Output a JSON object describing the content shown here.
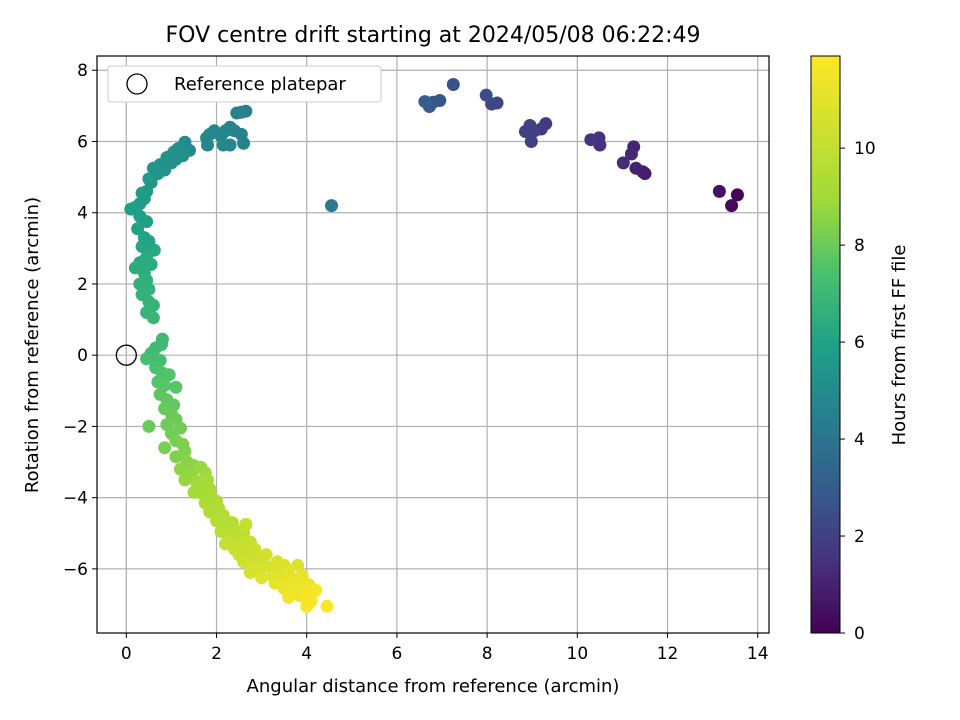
{
  "chart_data": {
    "type": "scatter",
    "title": "FOV centre drift starting at 2024/05/08 06:22:49",
    "xlabel": "Angular distance from reference (arcmin)",
    "ylabel": "Rotation from reference (arcmin)",
    "xlim": [
      -0.65,
      14.25
    ],
    "ylim": [
      -7.8,
      8.4
    ],
    "xticks": [
      0,
      2,
      4,
      6,
      8,
      10,
      12,
      14
    ],
    "yticks": [
      -6,
      -4,
      -2,
      0,
      2,
      4,
      6,
      8
    ],
    "grid": true,
    "legend": {
      "position": "top-left",
      "entries": [
        "Reference platepar"
      ]
    },
    "reference_point": {
      "x": 0,
      "y": 0,
      "marker": "open-circle"
    },
    "colorbar": {
      "label": "Hours from first FF file",
      "colormap": "viridis",
      "range": [
        0,
        11.9
      ],
      "ticks": [
        0,
        2,
        4,
        6,
        8,
        10
      ]
    },
    "points": [
      [
        13.55,
        4.5,
        0.1
      ],
      [
        13.42,
        4.2,
        0.3
      ],
      [
        13.15,
        4.6,
        0.5
      ],
      [
        11.5,
        5.1,
        0.8
      ],
      [
        11.45,
        5.15,
        0.9
      ],
      [
        11.3,
        5.25,
        1.0
      ],
      [
        11.25,
        5.85,
        1.1
      ],
      [
        11.2,
        5.65,
        1.2
      ],
      [
        11.02,
        5.4,
        1.3
      ],
      [
        10.5,
        5.9,
        1.4
      ],
      [
        10.48,
        6.1,
        1.5
      ],
      [
        10.3,
        6.05,
        1.6
      ],
      [
        9.3,
        6.5,
        1.7
      ],
      [
        9.2,
        6.35,
        1.8
      ],
      [
        9.05,
        6.3,
        1.9
      ],
      [
        8.98,
        6.0,
        2.0
      ],
      [
        8.95,
        6.45,
        2.0
      ],
      [
        8.85,
        6.28,
        2.1
      ],
      [
        8.22,
        7.08,
        2.2
      ],
      [
        8.1,
        7.05,
        2.3
      ],
      [
        7.98,
        7.3,
        2.4
      ],
      [
        7.25,
        7.6,
        2.6
      ],
      [
        6.95,
        7.15,
        2.7
      ],
      [
        6.8,
        7.1,
        2.8
      ],
      [
        6.72,
        6.98,
        2.9
      ],
      [
        6.62,
        7.12,
        3.0
      ],
      [
        4.55,
        4.2,
        4.2
      ],
      [
        2.65,
        6.85,
        4.4
      ],
      [
        2.55,
        6.82,
        4.5
      ],
      [
        2.45,
        6.8,
        4.55
      ],
      [
        2.6,
        5.95,
        4.6
      ],
      [
        2.55,
        6.2,
        4.6
      ],
      [
        2.4,
        6.3,
        4.65
      ],
      [
        2.3,
        6.4,
        4.7
      ],
      [
        2.2,
        6.3,
        4.7
      ],
      [
        2.3,
        5.9,
        4.75
      ],
      [
        2.15,
        5.9,
        4.75
      ],
      [
        2.1,
        6.15,
        4.8
      ],
      [
        1.95,
        6.3,
        4.8
      ],
      [
        1.85,
        6.2,
        4.85
      ],
      [
        1.8,
        5.9,
        4.85
      ],
      [
        1.78,
        6.1,
        4.9
      ],
      [
        1.4,
        5.75,
        5.0
      ],
      [
        1.3,
        5.98,
        5.05
      ],
      [
        1.25,
        5.6,
        5.1
      ],
      [
        1.15,
        5.8,
        5.1
      ],
      [
        1.1,
        5.5,
        5.15
      ],
      [
        1.05,
        5.7,
        5.2
      ],
      [
        1.0,
        5.4,
        5.2
      ],
      [
        0.9,
        5.55,
        5.3
      ],
      [
        0.85,
        5.2,
        5.3
      ],
      [
        0.75,
        5.35,
        5.35
      ],
      [
        0.7,
        5.1,
        5.4
      ],
      [
        0.6,
        5.25,
        5.45
      ],
      [
        0.55,
        4.85,
        5.5
      ],
      [
        0.5,
        4.95,
        5.55
      ],
      [
        0.45,
        4.6,
        5.6
      ],
      [
        0.4,
        4.4,
        5.65
      ],
      [
        0.35,
        4.55,
        5.7
      ],
      [
        0.3,
        4.25,
        5.75
      ],
      [
        0.2,
        4.15,
        5.8
      ],
      [
        0.1,
        4.1,
        5.85
      ],
      [
        0.3,
        3.9,
        5.9
      ],
      [
        0.45,
        3.75,
        5.95
      ],
      [
        0.25,
        3.55,
        6.0
      ],
      [
        0.4,
        3.3,
        6.05
      ],
      [
        0.5,
        3.2,
        6.1
      ],
      [
        0.35,
        3.05,
        6.15
      ],
      [
        0.5,
        2.9,
        6.2
      ],
      [
        0.62,
        2.95,
        6.25
      ],
      [
        0.45,
        2.75,
        6.3
      ],
      [
        0.3,
        2.6,
        6.35
      ],
      [
        0.55,
        2.55,
        6.4
      ],
      [
        0.2,
        2.45,
        6.45
      ],
      [
        0.4,
        2.3,
        6.5
      ],
      [
        0.45,
        2.1,
        6.55
      ],
      [
        0.3,
        2.0,
        6.6
      ],
      [
        0.5,
        1.85,
        6.65
      ],
      [
        0.35,
        1.7,
        6.7
      ],
      [
        0.5,
        1.5,
        6.75
      ],
      [
        0.6,
        1.4,
        6.8
      ],
      [
        0.45,
        1.2,
        6.85
      ],
      [
        0.6,
        1.05,
        6.9
      ],
      [
        0.8,
        0.45,
        7.0
      ],
      [
        0.78,
        0.3,
        7.05
      ],
      [
        0.65,
        0.2,
        7.1
      ],
      [
        0.55,
        0.05,
        7.15
      ],
      [
        0.6,
        -0.05,
        7.2
      ],
      [
        0.75,
        -0.15,
        7.25
      ],
      [
        0.45,
        -0.1,
        7.3
      ],
      [
        0.65,
        -0.35,
        7.4
      ],
      [
        0.8,
        -0.5,
        7.5
      ],
      [
        0.95,
        -0.55,
        7.55
      ],
      [
        0.7,
        -0.75,
        7.6
      ],
      [
        0.85,
        -0.85,
        7.65
      ],
      [
        1.1,
        -0.9,
        7.7
      ],
      [
        0.75,
        -1.1,
        7.75
      ],
      [
        0.9,
        -1.25,
        7.8
      ],
      [
        1.05,
        -1.4,
        7.85
      ],
      [
        0.85,
        -1.5,
        7.9
      ],
      [
        1.0,
        -1.65,
        7.95
      ],
      [
        1.1,
        -1.8,
        8.0
      ],
      [
        0.5,
        -2.0,
        8.0
      ],
      [
        0.9,
        -1.95,
        8.05
      ],
      [
        1.2,
        -2.05,
        8.1
      ],
      [
        1.0,
        -2.2,
        8.15
      ],
      [
        1.1,
        -2.4,
        8.2
      ],
      [
        0.85,
        -2.6,
        8.25
      ],
      [
        1.25,
        -2.5,
        8.3
      ],
      [
        1.3,
        -2.7,
        8.35
      ],
      [
        1.1,
        -2.85,
        8.4
      ],
      [
        1.35,
        -3.0,
        8.5
      ],
      [
        1.5,
        -3.1,
        8.55
      ],
      [
        1.2,
        -3.2,
        8.6
      ],
      [
        1.45,
        -3.3,
        8.7
      ],
      [
        1.3,
        -3.5,
        8.75
      ],
      [
        1.65,
        -3.15,
        8.8
      ],
      [
        1.75,
        -3.3,
        8.85
      ],
      [
        1.55,
        -3.55,
        8.9
      ],
      [
        1.6,
        -3.7,
        9.0
      ],
      [
        1.8,
        -3.5,
        9.05
      ],
      [
        1.5,
        -3.85,
        9.1
      ],
      [
        1.7,
        -3.9,
        9.15
      ],
      [
        1.85,
        -3.75,
        9.2
      ],
      [
        1.9,
        -4.0,
        9.25
      ],
      [
        1.75,
        -4.15,
        9.3
      ],
      [
        2.0,
        -4.1,
        9.35
      ],
      [
        2.05,
        -4.3,
        9.4
      ],
      [
        1.85,
        -4.4,
        9.45
      ],
      [
        2.15,
        -4.5,
        9.5
      ],
      [
        2.0,
        -4.65,
        9.55
      ],
      [
        2.2,
        -4.8,
        9.6
      ],
      [
        2.35,
        -4.7,
        9.65
      ],
      [
        2.1,
        -4.95,
        9.7
      ],
      [
        2.25,
        -5.05,
        9.75
      ],
      [
        2.45,
        -4.95,
        9.8
      ],
      [
        2.3,
        -5.25,
        9.85
      ],
      [
        2.5,
        -5.15,
        9.9
      ],
      [
        2.6,
        -5.0,
        9.95
      ],
      [
        2.65,
        -4.75,
        10.0
      ],
      [
        2.2,
        -5.3,
        10.0
      ],
      [
        2.4,
        -5.45,
        10.05
      ],
      [
        2.6,
        -5.35,
        10.1
      ],
      [
        2.75,
        -5.25,
        10.15
      ],
      [
        2.5,
        -5.6,
        10.2
      ],
      [
        2.7,
        -5.55,
        10.25
      ],
      [
        2.85,
        -5.45,
        10.3
      ],
      [
        2.9,
        -5.65,
        10.35
      ],
      [
        2.6,
        -5.8,
        10.4
      ],
      [
        2.8,
        -5.85,
        10.45
      ],
      [
        3.0,
        -5.8,
        10.5
      ],
      [
        3.1,
        -5.6,
        10.55
      ],
      [
        2.75,
        -6.1,
        10.6
      ],
      [
        2.95,
        -6.05,
        10.65
      ],
      [
        3.2,
        -5.95,
        10.7
      ],
      [
        3.35,
        -5.8,
        10.75
      ],
      [
        3.5,
        -5.9,
        10.8
      ],
      [
        3.8,
        -5.9,
        10.85
      ],
      [
        3.0,
        -6.25,
        10.9
      ],
      [
        3.25,
        -6.2,
        10.95
      ],
      [
        3.45,
        -6.15,
        11.0
      ],
      [
        3.6,
        -6.05,
        11.05
      ],
      [
        3.3,
        -6.4,
        11.1
      ],
      [
        3.55,
        -6.35,
        11.15
      ],
      [
        3.75,
        -6.3,
        11.2
      ],
      [
        3.9,
        -6.2,
        11.25
      ],
      [
        3.5,
        -6.55,
        11.3
      ],
      [
        3.7,
        -6.6,
        11.35
      ],
      [
        3.9,
        -6.5,
        11.4
      ],
      [
        4.05,
        -6.45,
        11.45
      ],
      [
        3.6,
        -6.8,
        11.5
      ],
      [
        3.85,
        -6.75,
        11.55
      ],
      [
        4.0,
        -6.7,
        11.6
      ],
      [
        4.2,
        -6.6,
        11.65
      ],
      [
        4.1,
        -6.9,
        11.7
      ],
      [
        4.0,
        -7.05,
        11.75
      ],
      [
        4.45,
        -7.05,
        11.8
      ]
    ]
  }
}
